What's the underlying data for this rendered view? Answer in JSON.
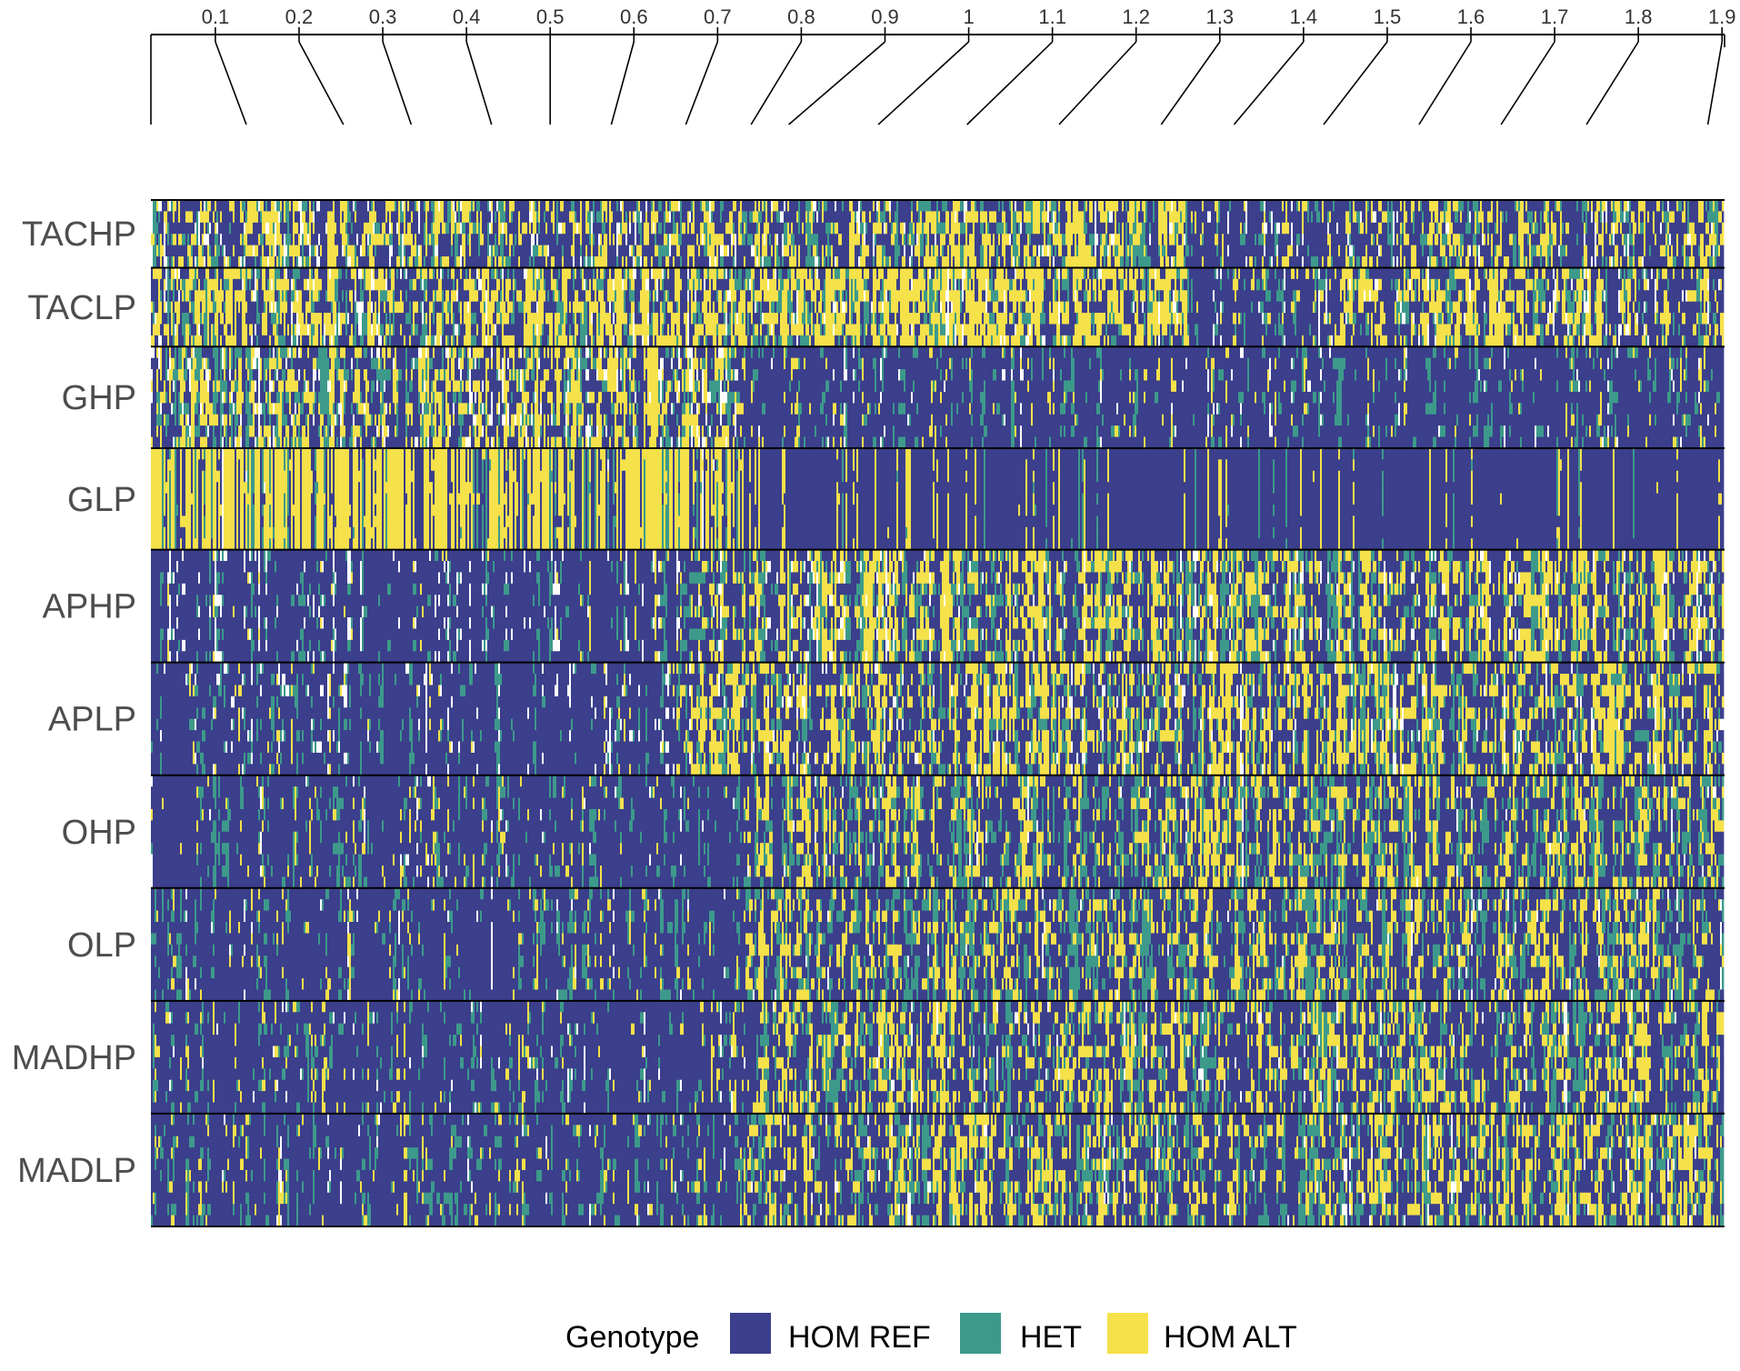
{
  "chart_data": {
    "type": "heatmap",
    "title": "",
    "xlabel": "",
    "ylabel": "",
    "x_axis": {
      "position": "top",
      "ticks": [
        0.1,
        0.2,
        0.3,
        0.4,
        0.5,
        0.6,
        0.7,
        0.8,
        0.9,
        1,
        1.1,
        1.2,
        1.3,
        1.4,
        1.5,
        1.6,
        1.7,
        1.8,
        1.9
      ],
      "tick_labels": [
        "0.1",
        "0.2",
        "0.3",
        "0.4",
        "0.5",
        "0.6",
        "0.7",
        "0.8",
        "0.9",
        "1",
        "1.1",
        "1.2",
        "1.3",
        "1.4",
        "1.5",
        "1.6",
        "1.7",
        "1.8",
        "1.9"
      ],
      "range": [
        0.023,
        1.903
      ],
      "connector_targets": [
        0.137,
        0.253,
        0.334,
        0.43,
        0.5,
        0.573,
        0.662,
        0.74,
        0.785,
        0.892,
        0.998,
        1.108,
        1.23,
        1.317,
        1.424,
        1.538,
        1.636,
        1.738,
        1.883
      ]
    },
    "groups": [
      {
        "label": "TACHP",
        "rows": 6,
        "sections": [
          {
            "x": [
              0.023,
              0.75
            ],
            "pattern": "mixed",
            "blue": 0.42,
            "teal": 0.18,
            "yellow": 0.3
          },
          {
            "x": [
              0.75,
              0.94
            ],
            "pattern": "mixed",
            "blue": 0.4,
            "teal": 0.2,
            "yellow": 0.32
          },
          {
            "x": [
              0.94,
              1.26
            ],
            "pattern": "mixed",
            "blue": 0.35,
            "teal": 0.2,
            "yellow": 0.4
          },
          {
            "x": [
              1.26,
              1.45
            ],
            "pattern": "mixed",
            "blue": 0.68,
            "teal": 0.15,
            "yellow": 0.12
          },
          {
            "x": [
              1.45,
              1.903
            ],
            "pattern": "mixed",
            "blue": 0.45,
            "teal": 0.2,
            "yellow": 0.3
          }
        ]
      },
      {
        "label": "TACLP",
        "rows": 7,
        "sections": [
          {
            "x": [
              0.023,
              0.75
            ],
            "pattern": "mixed",
            "blue": 0.35,
            "teal": 0.18,
            "yellow": 0.4
          },
          {
            "x": [
              0.75,
              1.26
            ],
            "pattern": "mixed",
            "blue": 0.32,
            "teal": 0.18,
            "yellow": 0.45
          },
          {
            "x": [
              1.26,
              1.45
            ],
            "pattern": "mixed",
            "blue": 0.7,
            "teal": 0.14,
            "yellow": 0.12
          },
          {
            "x": [
              1.45,
              1.903
            ],
            "pattern": "mixed",
            "blue": 0.4,
            "teal": 0.18,
            "yellow": 0.36
          }
        ]
      },
      {
        "label": "GHP",
        "rows": 9,
        "sections": [
          {
            "x": [
              0.023,
              0.73
            ],
            "pattern": "mixed",
            "blue": 0.4,
            "teal": 0.2,
            "yellow": 0.3
          },
          {
            "x": [
              0.73,
              1.903
            ],
            "pattern": "mixed",
            "blue": 0.72,
            "teal": 0.16,
            "yellow": 0.08
          }
        ]
      },
      {
        "label": "GLP",
        "rows": 9,
        "sections": [
          {
            "x": [
              0.023,
              0.73
            ],
            "pattern": "columns",
            "blue": 0.28,
            "teal": 0.1,
            "yellow": 0.6
          },
          {
            "x": [
              0.73,
              1.903
            ],
            "pattern": "columns",
            "blue": 0.88,
            "teal": 0.05,
            "yellow": 0.07
          }
        ]
      },
      {
        "label": "APHP",
        "rows": 10,
        "sections": [
          {
            "x": [
              0.023,
              0.65
            ],
            "pattern": "mixed",
            "blue": 0.72,
            "teal": 0.14,
            "yellow": 0.05
          },
          {
            "x": [
              0.65,
              1.903
            ],
            "pattern": "mixed",
            "blue": 0.4,
            "teal": 0.22,
            "yellow": 0.32
          }
        ]
      },
      {
        "label": "APLP",
        "rows": 10,
        "sections": [
          {
            "x": [
              0.023,
              0.65
            ],
            "pattern": "mixed",
            "blue": 0.72,
            "teal": 0.14,
            "yellow": 0.05
          },
          {
            "x": [
              0.65,
              1.903
            ],
            "pattern": "mixed",
            "blue": 0.4,
            "teal": 0.2,
            "yellow": 0.34
          }
        ]
      },
      {
        "label": "OHP",
        "rows": 10,
        "sections": [
          {
            "x": [
              0.023,
              0.73
            ],
            "pattern": "mixed",
            "blue": 0.74,
            "teal": 0.16,
            "yellow": 0.08
          },
          {
            "x": [
              0.73,
              1.903
            ],
            "pattern": "mixed",
            "blue": 0.45,
            "teal": 0.25,
            "yellow": 0.28
          }
        ]
      },
      {
        "label": "OLP",
        "rows": 10,
        "sections": [
          {
            "x": [
              0.023,
              0.73
            ],
            "pattern": "mixed",
            "blue": 0.72,
            "teal": 0.18,
            "yellow": 0.08
          },
          {
            "x": [
              0.73,
              1.903
            ],
            "pattern": "mixed",
            "blue": 0.45,
            "teal": 0.25,
            "yellow": 0.28
          }
        ]
      },
      {
        "label": "MADHP",
        "rows": 10,
        "sections": [
          {
            "x": [
              0.023,
              0.73
            ],
            "pattern": "mixed",
            "blue": 0.7,
            "teal": 0.16,
            "yellow": 0.1
          },
          {
            "x": [
              0.73,
              1.903
            ],
            "pattern": "mixed",
            "blue": 0.45,
            "teal": 0.22,
            "yellow": 0.3
          }
        ]
      },
      {
        "label": "MADLP",
        "rows": 10,
        "sections": [
          {
            "x": [
              0.023,
              0.73
            ],
            "pattern": "mixed",
            "blue": 0.7,
            "teal": 0.18,
            "yellow": 0.1
          },
          {
            "x": [
              0.73,
              1.903
            ],
            "pattern": "mixed",
            "blue": 0.45,
            "teal": 0.22,
            "yellow": 0.3
          }
        ]
      }
    ],
    "legend": {
      "title": "Genotype",
      "placement": "bottom",
      "entries": [
        {
          "label": "HOM REF",
          "color": "#3b3f8c"
        },
        {
          "label": "HET",
          "color": "#3d9a8b"
        },
        {
          "label": "HOM ALT",
          "color": "#f5e14a"
        }
      ]
    },
    "colors": {
      "missing": "#ffffff",
      "separator": "#000000",
      "axis": "#000000"
    }
  }
}
